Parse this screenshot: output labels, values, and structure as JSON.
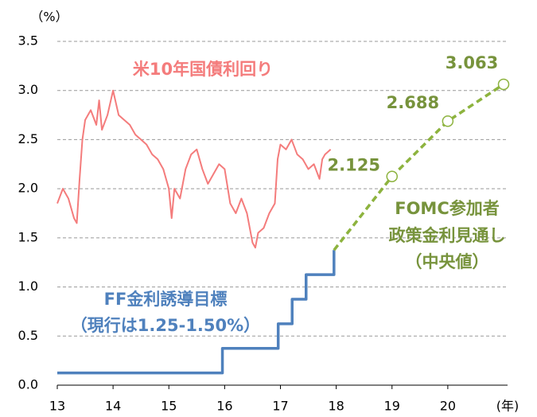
{
  "chart_data": {
    "type": "line",
    "y_label": "（%）",
    "x_label": "(年)",
    "xlim": [
      13,
      21
    ],
    "xticks": [
      13,
      14,
      15,
      16,
      17,
      18,
      19,
      20
    ],
    "ylim": [
      0,
      3.5
    ],
    "yticks": [
      {
        "value": 0,
        "label": "0.0"
      },
      0.5,
      {
        "value": 1,
        "label": "1.0"
      },
      1.5,
      {
        "value": 2,
        "label": "2.0"
      },
      2.5,
      {
        "value": 3,
        "label": "3.0"
      },
      3.5
    ],
    "grid": true,
    "series": [
      {
        "name": "米10年国債利回り",
        "color": "#f47c7c",
        "style": "solid",
        "x": [
          13.0,
          13.1,
          13.2,
          13.3,
          13.35,
          13.4,
          13.45,
          13.5,
          13.6,
          13.7,
          13.75,
          13.8,
          13.9,
          14.0,
          14.1,
          14.2,
          14.3,
          14.4,
          14.5,
          14.6,
          14.7,
          14.8,
          14.9,
          15.0,
          15.05,
          15.1,
          15.2,
          15.3,
          15.4,
          15.5,
          15.6,
          15.7,
          15.8,
          15.9,
          16.0,
          16.1,
          16.2,
          16.3,
          16.4,
          16.5,
          16.55,
          16.6,
          16.7,
          16.8,
          16.9,
          16.95,
          17.0,
          17.1,
          17.2,
          17.3,
          17.4,
          17.5,
          17.6,
          17.7,
          17.75,
          17.8,
          17.9
        ],
        "values": [
          1.85,
          2.0,
          1.9,
          1.7,
          1.65,
          2.1,
          2.5,
          2.7,
          2.8,
          2.65,
          2.9,
          2.6,
          2.75,
          3.0,
          2.75,
          2.7,
          2.65,
          2.55,
          2.5,
          2.45,
          2.35,
          2.3,
          2.2,
          2.0,
          1.7,
          2.0,
          1.9,
          2.2,
          2.35,
          2.4,
          2.2,
          2.05,
          2.15,
          2.25,
          2.2,
          1.85,
          1.75,
          1.9,
          1.75,
          1.45,
          1.4,
          1.55,
          1.6,
          1.75,
          1.85,
          2.3,
          2.45,
          2.4,
          2.5,
          2.35,
          2.3,
          2.2,
          2.25,
          2.1,
          2.3,
          2.35,
          2.4
        ]
      },
      {
        "name": "FF金利誘導目標",
        "color": "#4f81bd",
        "style": "step",
        "x": [
          13,
          15.96,
          16.96,
          17.21,
          17.46,
          17.96
        ],
        "values": [
          0.125,
          0.375,
          0.625,
          0.875,
          1.125,
          1.375
        ]
      },
      {
        "name": "FOMC参加者",
        "color": "#8db33e",
        "style": "dashed",
        "x": [
          17.96,
          19,
          20,
          21
        ],
        "values": [
          1.375,
          2.125,
          2.688,
          3.063
        ]
      }
    ],
    "annotations": [
      "（現行は1.25-1.50%）",
      "政策金利見通し",
      "（中央値）"
    ]
  }
}
